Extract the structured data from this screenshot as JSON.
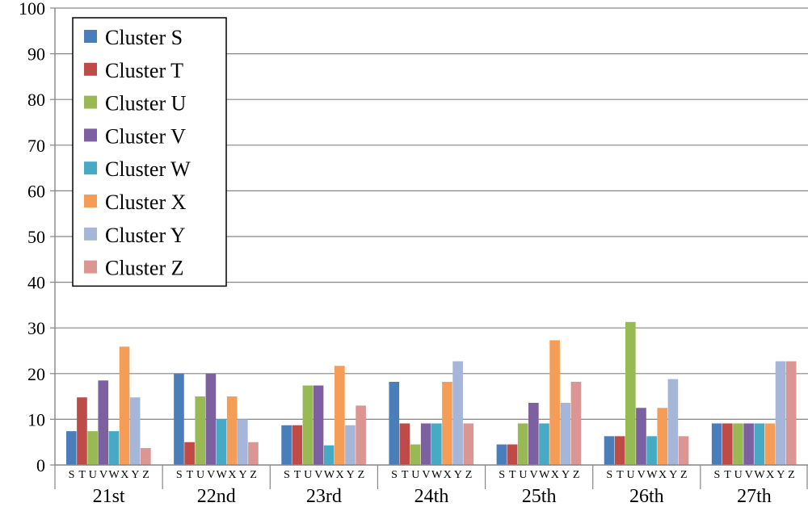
{
  "chart_data": {
    "type": "bar",
    "categories": [
      "21st",
      "22nd",
      "23rd",
      "24th",
      "25th",
      "26th",
      "27th"
    ],
    "sub_labels": [
      "S",
      "T",
      "U",
      "V",
      "W",
      "X",
      "Y",
      "Z"
    ],
    "ylim": [
      0,
      100
    ],
    "yticks": [
      "0",
      "10",
      "20",
      "30",
      "40",
      "50",
      "60",
      "70",
      "80",
      "90",
      "100"
    ],
    "grid": true,
    "legend_position": "top-left",
    "series": [
      {
        "name": "Cluster S",
        "color": "#4a7ebb",
        "values": [
          7.4,
          20.0,
          8.7,
          18.2,
          4.5,
          6.3,
          9.1
        ]
      },
      {
        "name": "Cluster T",
        "color": "#be4b48",
        "values": [
          14.8,
          5.0,
          8.7,
          9.1,
          4.5,
          6.3,
          9.1
        ]
      },
      {
        "name": "Cluster U",
        "color": "#98b954",
        "values": [
          7.4,
          15.0,
          17.4,
          4.5,
          9.1,
          31.3,
          9.1
        ]
      },
      {
        "name": "Cluster V",
        "color": "#7d60a0",
        "values": [
          18.5,
          20.0,
          17.4,
          9.1,
          13.6,
          12.5,
          9.1
        ]
      },
      {
        "name": "Cluster W",
        "color": "#46aac5",
        "values": [
          7.4,
          10.0,
          4.3,
          9.1,
          9.1,
          6.3,
          9.1
        ]
      },
      {
        "name": "Cluster X",
        "color": "#f59d56",
        "values": [
          25.9,
          15.0,
          21.7,
          18.2,
          27.3,
          12.5,
          9.1
        ]
      },
      {
        "name": "Cluster Y",
        "color": "#a5b6d9",
        "values": [
          14.8,
          10.0,
          8.7,
          22.7,
          13.6,
          18.8,
          22.7
        ]
      },
      {
        "name": "Cluster Z",
        "color": "#db9694",
        "values": [
          3.7,
          5.0,
          13.0,
          9.1,
          18.2,
          6.3,
          22.7
        ]
      }
    ]
  }
}
